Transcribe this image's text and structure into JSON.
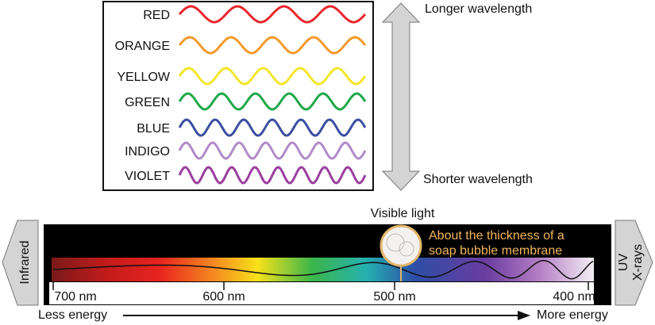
{
  "wave_box": {
    "colors": [
      {
        "label": "RED",
        "color": "#e8262b"
      },
      {
        "label": "ORANGE",
        "color": "#f39a2b"
      },
      {
        "label": "YELLOW",
        "color": "#f2e629"
      },
      {
        "label": "GREEN",
        "color": "#1fa84a"
      },
      {
        "label": "BLUE",
        "color": "#3a4fa2"
      },
      {
        "label": "INDIGO",
        "color": "#b08cc8"
      },
      {
        "label": "VIOLET",
        "color": "#9b3f9f"
      }
    ]
  },
  "wavelength_arrow": {
    "top": "Longer wavelength",
    "bottom": "Shorter wavelength"
  },
  "spectrum": {
    "title": "Visible light",
    "annotation": [
      "About the thickness of a",
      "soap bubble membrane"
    ],
    "left": "Infrared",
    "right": [
      "UV",
      "X-rays"
    ],
    "scale": [
      "700 nm",
      "600 nm",
      "500 nm",
      "400 nm"
    ]
  },
  "energy": {
    "left": "Less energy",
    "right": "More energy"
  }
}
